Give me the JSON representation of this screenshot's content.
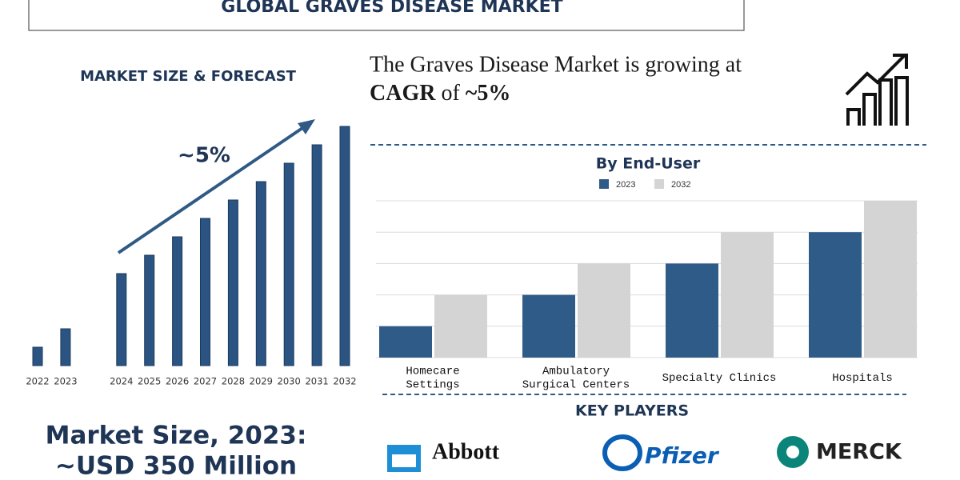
{
  "header": {
    "title": "GLOBAL GRAVES DISEASE MARKET"
  },
  "headline": {
    "line1": "The Graves Disease Market is growing at",
    "cagr": "CAGR",
    "of": "of",
    "rate": "~5%"
  },
  "market_size": {
    "label": "Market Size, 2023:",
    "value": "~USD 350 Million"
  },
  "key_players": {
    "title": "KEY PLAYERS",
    "names": [
      "Abbott",
      "Pfizer",
      "MERCK"
    ]
  },
  "chart_data": [
    {
      "type": "bar",
      "title": "MARKET SIZE & FORECAST",
      "annotation": "~5%",
      "categories": [
        "2022",
        "2023",
        "2024",
        "2025",
        "2026",
        "2027",
        "2028",
        "2029",
        "2030",
        "2031",
        "2032"
      ],
      "values": [
        1,
        2,
        5,
        6,
        7,
        8,
        9,
        10,
        11,
        12,
        13
      ],
      "color": "#2b5483"
    },
    {
      "type": "grouped_bar",
      "title": "By End-User",
      "categories": [
        "Homecare\nSettings",
        "Ambulatory\nSurgical Centers",
        "Specialty Clinics",
        "Hospitals"
      ],
      "series": [
        {
          "name": "2023",
          "color": "#2e5b88",
          "values": [
            1,
            2,
            3,
            4
          ]
        },
        {
          "name": "2032",
          "color": "#d4d4d4",
          "values": [
            2,
            3,
            4,
            5
          ]
        }
      ],
      "ylim": [
        0,
        5
      ],
      "yticks": [
        0,
        1,
        2,
        3,
        4,
        5
      ],
      "grid": true
    }
  ]
}
